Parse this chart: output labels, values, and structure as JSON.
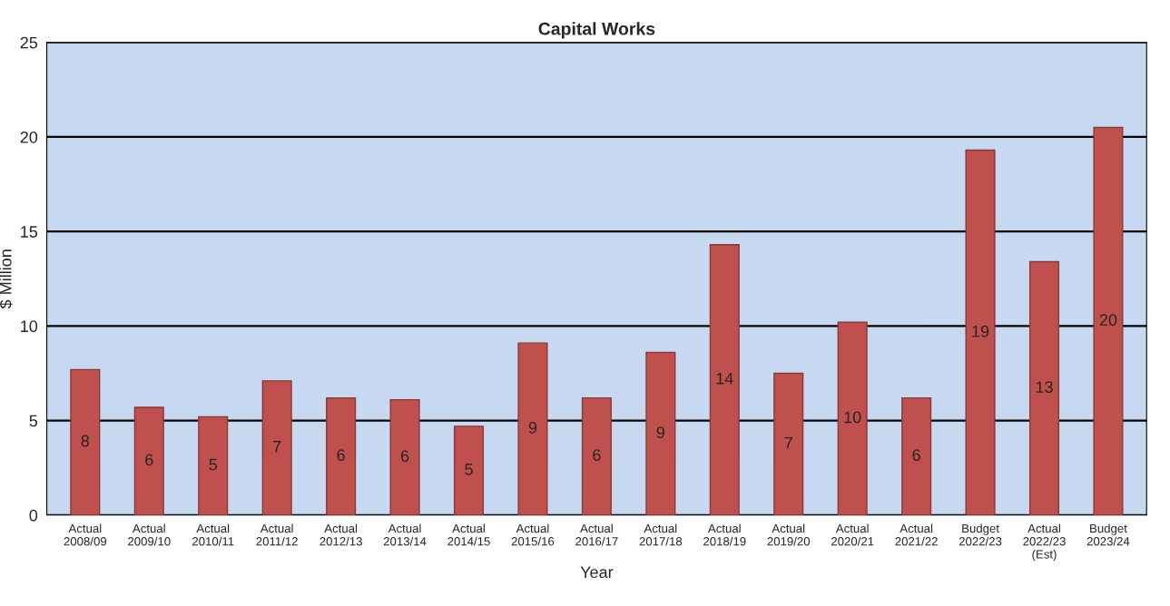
{
  "chart_data": {
    "type": "bar",
    "title": "Capital Works",
    "xlabel": "Year",
    "ylabel": "$ Million",
    "categories": [
      "Actual\n2008/09",
      "Actual\n2009/10",
      "Actual\n2010/11",
      "Actual\n2011/12",
      "Actual\n2012/13",
      "Actual\n2013/14",
      "Actual\n2014/15",
      "Actual\n2015/16",
      "Actual\n2016/17",
      "Actual\n2017/18",
      "Actual\n2018/19",
      "Actual\n2019/20",
      "Actual\n2020/21",
      "Actual\n2021/22",
      "Budget\n2022/23",
      "Actual\n2022/23\n(Est)",
      "Budget\n2023/24"
    ],
    "values": [
      7.7,
      5.7,
      5.2,
      7.1,
      6.2,
      6.1,
      4.7,
      9.1,
      6.2,
      8.6,
      14.3,
      7.5,
      10.2,
      6.2,
      19.3,
      13.4,
      20.5
    ],
    "value_labels": [
      "8",
      "6",
      "5",
      "7",
      "6",
      "6",
      "5",
      "9",
      "6",
      "9",
      "14",
      "7",
      "10",
      "6",
      "19",
      "13",
      "20"
    ],
    "color": "#c0504d",
    "ylim": [
      0,
      25
    ],
    "yticks": [
      0,
      5,
      10,
      15,
      20,
      25
    ],
    "grid": "y",
    "legend": false
  }
}
